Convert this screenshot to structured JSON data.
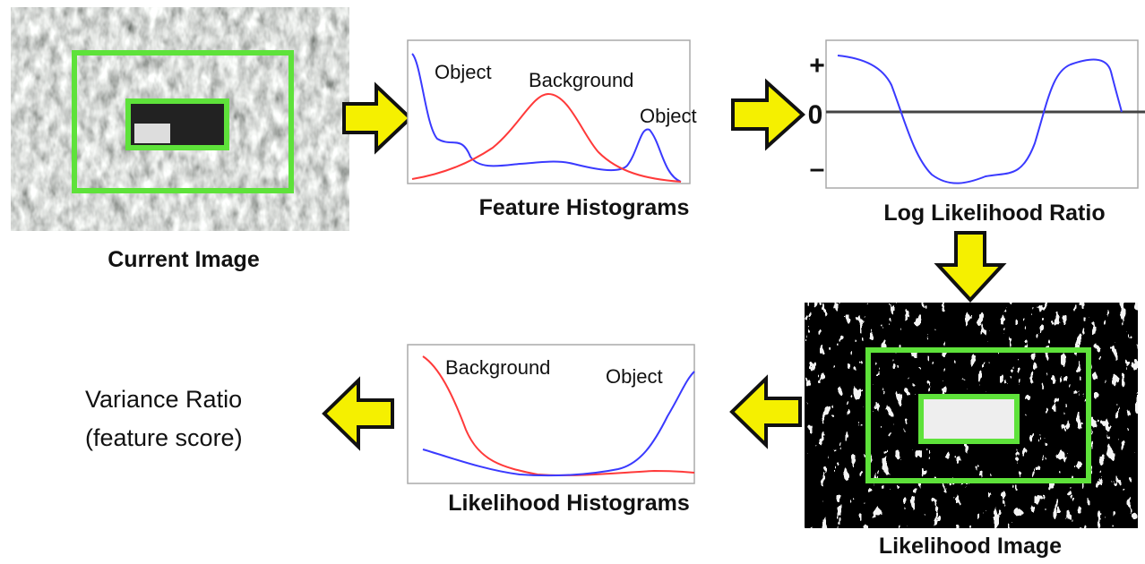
{
  "current_image": {
    "label": "Current Image"
  },
  "feature_histograms": {
    "label": "Feature Histograms",
    "annotations": [
      "Object",
      "Background",
      "Object"
    ]
  },
  "log_likelihood_ratio": {
    "label": "Log Likelihood Ratio",
    "axis_labels": [
      "+",
      "0",
      "–"
    ]
  },
  "likelihood_image": {
    "label": "Likelihood Image"
  },
  "likelihood_histograms": {
    "label": "Likelihood Histograms",
    "annotations": [
      "Background",
      "Object"
    ]
  },
  "output": {
    "lines": [
      "Variance Ratio",
      "(feature score)"
    ]
  }
}
